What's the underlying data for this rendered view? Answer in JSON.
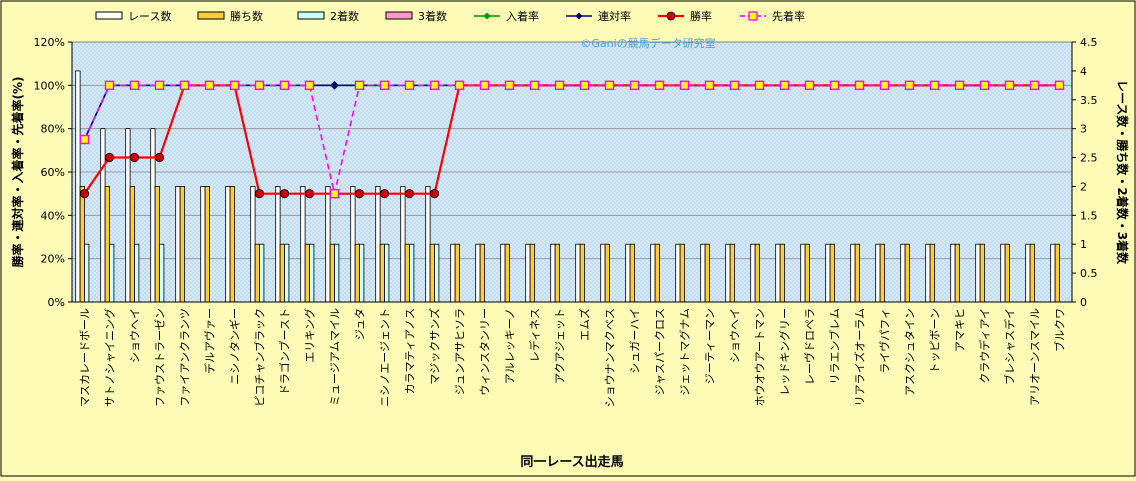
{
  "chart_data": {
    "type": "bar",
    "xlabel": "同一レース出走馬",
    "ylabel_left": "勝率・連対率・入着率・先着率(%)",
    "ylabel_right": "レース数・勝ち数・2着数・3着数",
    "watermark": "©Ganiの競馬データ研究室",
    "y_left": {
      "min": 0,
      "max": 120,
      "ticks": [
        "0%",
        "20%",
        "40%",
        "60%",
        "80%",
        "100%",
        "120%"
      ]
    },
    "y_right": {
      "min": 0,
      "max": 4.5,
      "ticks": [
        "0",
        "0.5",
        "1",
        "1.5",
        "2",
        "2.5",
        "3",
        "3.5",
        "4",
        "4.5"
      ]
    },
    "legend_position": "top",
    "grid": true,
    "categories": [
      "マスカレードボール",
      "サトノシャイニング",
      "ショウヘイ",
      "ファウストラーゼン",
      "ファイアンクランツ",
      "デルアヴァー",
      "ニシノタンギー",
      "ピコチャンブラック",
      "ドラゴンブースト",
      "エリキング",
      "ミュージアムマイル",
      "ジュタ",
      "ニシノエージェント",
      "カラマティアノス",
      "マジックサンズ",
      "ジュンアサヒソラ",
      "ウィンスタンリー",
      "アルレッキーノ",
      "レディネス",
      "アクアジェット",
      "エムズ",
      "ショウナンマクベス",
      "シュガーハイ",
      "ジャスパークロス",
      "ジェットマグナム",
      "ジーティーマン",
      "ショウヘイ",
      "ホウオウアートマン",
      "レッドキングリー",
      "レーヴドロペラ",
      "リラエンブレム",
      "リアライズオーラム",
      "ライヴパフィ",
      "アスクシュタイン",
      "トッピボーン",
      "アマキヒ",
      "クラウディアイ",
      "ブレシャスデイ",
      "アリオーンスマイル",
      "ブルクワ"
    ],
    "series": [
      {
        "name": "レース数",
        "axis": "right",
        "kind": "bar",
        "color": "#ffffff",
        "values": [
          4,
          3,
          3,
          3,
          2,
          2,
          2,
          2,
          2,
          2,
          2,
          2,
          2,
          2,
          2,
          1,
          1,
          1,
          1,
          1,
          1,
          1,
          1,
          1,
          1,
          1,
          1,
          1,
          1,
          1,
          1,
          1,
          1,
          1,
          1,
          1,
          1,
          1,
          1,
          1
        ]
      },
      {
        "name": "勝ち数",
        "axis": "right",
        "kind": "bar",
        "color": "#ffcc33",
        "values": [
          2,
          2,
          2,
          2,
          2,
          2,
          2,
          1,
          1,
          1,
          1,
          1,
          1,
          1,
          1,
          1,
          1,
          1,
          1,
          1,
          1,
          1,
          1,
          1,
          1,
          1,
          1,
          1,
          1,
          1,
          1,
          1,
          1,
          1,
          1,
          1,
          1,
          1,
          1,
          1
        ]
      },
      {
        "name": "2着数",
        "axis": "right",
        "kind": "bar",
        "color": "#ccffff",
        "values": [
          1,
          1,
          1,
          1,
          0,
          0,
          0,
          1,
          1,
          1,
          1,
          1,
          1,
          1,
          1,
          0,
          0,
          0,
          0,
          0,
          0,
          0,
          0,
          0,
          0,
          0,
          0,
          0,
          0,
          0,
          0,
          0,
          0,
          0,
          0,
          0,
          0,
          0,
          0,
          0
        ]
      },
      {
        "name": "3着数",
        "axis": "right",
        "kind": "bar",
        "color": "#ff99cc",
        "values": [
          0,
          0,
          0,
          0,
          0,
          0,
          0,
          0,
          0,
          0,
          0,
          0,
          0,
          0,
          0,
          0,
          0,
          0,
          0,
          0,
          0,
          0,
          0,
          0,
          0,
          0,
          0,
          0,
          0,
          0,
          0,
          0,
          0,
          0,
          0,
          0,
          0,
          0,
          0,
          0
        ]
      },
      {
        "name": "入着率",
        "axis": "left",
        "kind": "line",
        "color": "#009900",
        "values": [
          75,
          100,
          100,
          100,
          100,
          100,
          100,
          100,
          100,
          100,
          100,
          100,
          100,
          100,
          100,
          100,
          100,
          100,
          100,
          100,
          100,
          100,
          100,
          100,
          100,
          100,
          100,
          100,
          100,
          100,
          100,
          100,
          100,
          100,
          100,
          100,
          100,
          100,
          100,
          100
        ]
      },
      {
        "name": "連対率",
        "axis": "left",
        "kind": "line",
        "color": "#000080",
        "values": [
          75,
          100,
          100,
          100,
          100,
          100,
          100,
          100,
          100,
          100,
          100,
          100,
          100,
          100,
          100,
          100,
          100,
          100,
          100,
          100,
          100,
          100,
          100,
          100,
          100,
          100,
          100,
          100,
          100,
          100,
          100,
          100,
          100,
          100,
          100,
          100,
          100,
          100,
          100,
          100
        ]
      },
      {
        "name": "勝率",
        "axis": "left",
        "kind": "line",
        "color": "#ff0000",
        "values": [
          50,
          66.7,
          66.7,
          66.7,
          100,
          100,
          100,
          50,
          50,
          50,
          50,
          50,
          50,
          50,
          50,
          100,
          100,
          100,
          100,
          100,
          100,
          100,
          100,
          100,
          100,
          100,
          100,
          100,
          100,
          100,
          100,
          100,
          100,
          100,
          100,
          100,
          100,
          100,
          100,
          100
        ]
      },
      {
        "name": "先着率",
        "axis": "left",
        "kind": "line",
        "color": "#ff00ff",
        "values": [
          75,
          100,
          100,
          100,
          100,
          100,
          100,
          100,
          100,
          100,
          50,
          100,
          100,
          100,
          100,
          100,
          100,
          100,
          100,
          100,
          100,
          100,
          100,
          100,
          100,
          100,
          100,
          100,
          100,
          100,
          100,
          100,
          100,
          100,
          100,
          100,
          100,
          100,
          100,
          100
        ]
      }
    ]
  }
}
